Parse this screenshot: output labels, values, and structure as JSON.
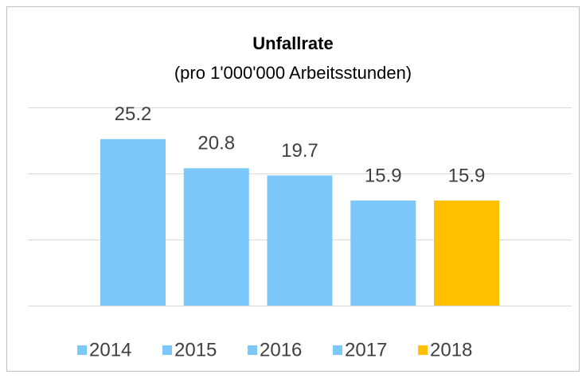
{
  "chart_data": {
    "type": "bar",
    "title": "Unfallrate",
    "subtitle": "(pro 1'000'000 Arbeitsstunden)",
    "categories": [
      "2014",
      "2015",
      "2016",
      "2017",
      "2018"
    ],
    "values": [
      25.2,
      20.8,
      19.7,
      15.9,
      15.9
    ],
    "colors": [
      "#7dc8fb",
      "#7dc8fb",
      "#7dc8fb",
      "#7dc8fb",
      "#ffc000"
    ],
    "ylim": [
      0,
      30
    ],
    "yticks": [
      0,
      10,
      20,
      30
    ],
    "grid": true,
    "legend": "bottom"
  }
}
